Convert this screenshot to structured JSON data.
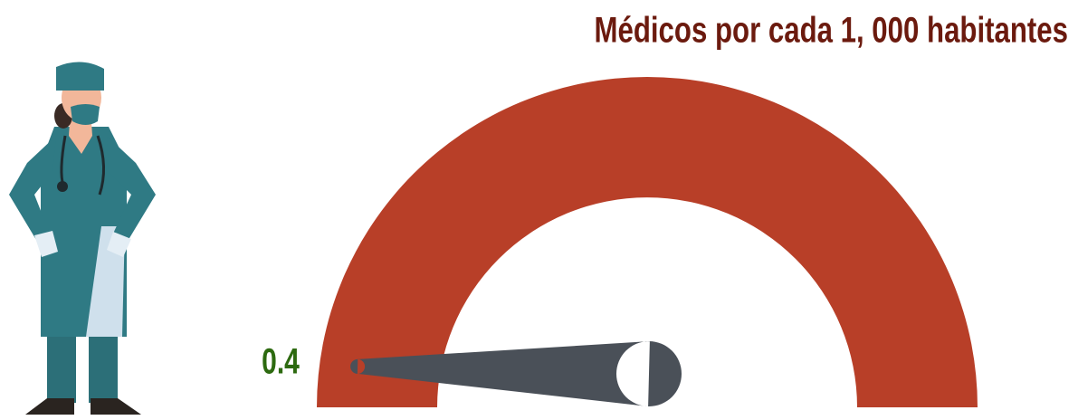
{
  "chart_data": {
    "type": "gauge",
    "title": "Médicos por cada 1, 000 habitantes",
    "values": [
      0.4
    ],
    "ylim": [
      0,
      50
    ],
    "color": "#b83f28",
    "needle_color": "#4a5058",
    "value_color": "#2d6a10"
  }
}
